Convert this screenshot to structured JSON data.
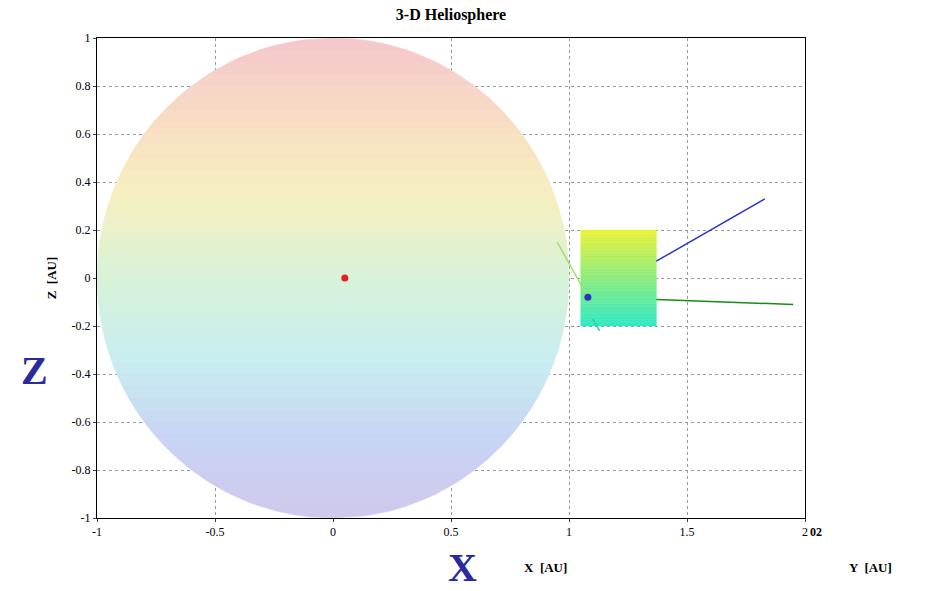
{
  "chart_data": {
    "type": "scatter",
    "title": "3-D Heliosphere",
    "x_label": "X  [AU]",
    "y_label": "Z  [AU]",
    "xlim": [
      -1,
      2
    ],
    "xticks": [
      -1,
      -0.5,
      0,
      0.5,
      1,
      1.5,
      2
    ],
    "ylim": [
      -1,
      1
    ],
    "yticks": [
      -1,
      -0.8,
      -0.6,
      -0.4,
      -0.2,
      0,
      0.2,
      0.4,
      0.6,
      0.8,
      1
    ],
    "grid": true,
    "annotations": [
      {
        "text": "Y  [AU]",
        "color": "#000000"
      },
      {
        "text": "02",
        "color": "#000000"
      },
      {
        "text": "Z",
        "color": "#2a2a9e"
      },
      {
        "text": "X",
        "color": "#2a2a9e"
      }
    ],
    "series": [
      {
        "type": "sphere",
        "x": [
          0
        ],
        "values": [
          0
        ],
        "radius": 1,
        "colors": [
          "#f5c6cc",
          "#f8dcc4",
          "#f6f0c0",
          "#d8f2d8",
          "#c8eef0",
          "#c8d4f4",
          "#d0c8ee"
        ]
      },
      {
        "type": "scatter",
        "marker": "circle",
        "color": "#e0202a",
        "x": [
          0.05
        ],
        "values": [
          0.0
        ]
      },
      {
        "type": "box",
        "x": [
          1.05,
          1.37
        ],
        "values": [
          -0.2,
          0.2
        ],
        "colors": [
          "#30e8c4",
          "#e8f23a"
        ]
      },
      {
        "type": "line",
        "color": "#2a36d0",
        "x": [
          1.37,
          1.83
        ],
        "values": [
          0.07,
          0.33
        ]
      },
      {
        "type": "line",
        "color": "#1a8a1a",
        "x": [
          1.37,
          1.95
        ],
        "values": [
          -0.09,
          -0.11
        ]
      },
      {
        "type": "line",
        "color": "#a0e070",
        "x": [
          0.95,
          1.08
        ],
        "values": [
          0.15,
          -0.08
        ]
      },
      {
        "type": "line",
        "color": "#30d0a0",
        "x": [
          1.1,
          1.13
        ],
        "values": [
          -0.17,
          -0.22
        ]
      },
      {
        "type": "scatter",
        "marker": "circle",
        "color": "#3030c0",
        "x": [
          1.08
        ],
        "values": [
          -0.08
        ]
      }
    ]
  }
}
